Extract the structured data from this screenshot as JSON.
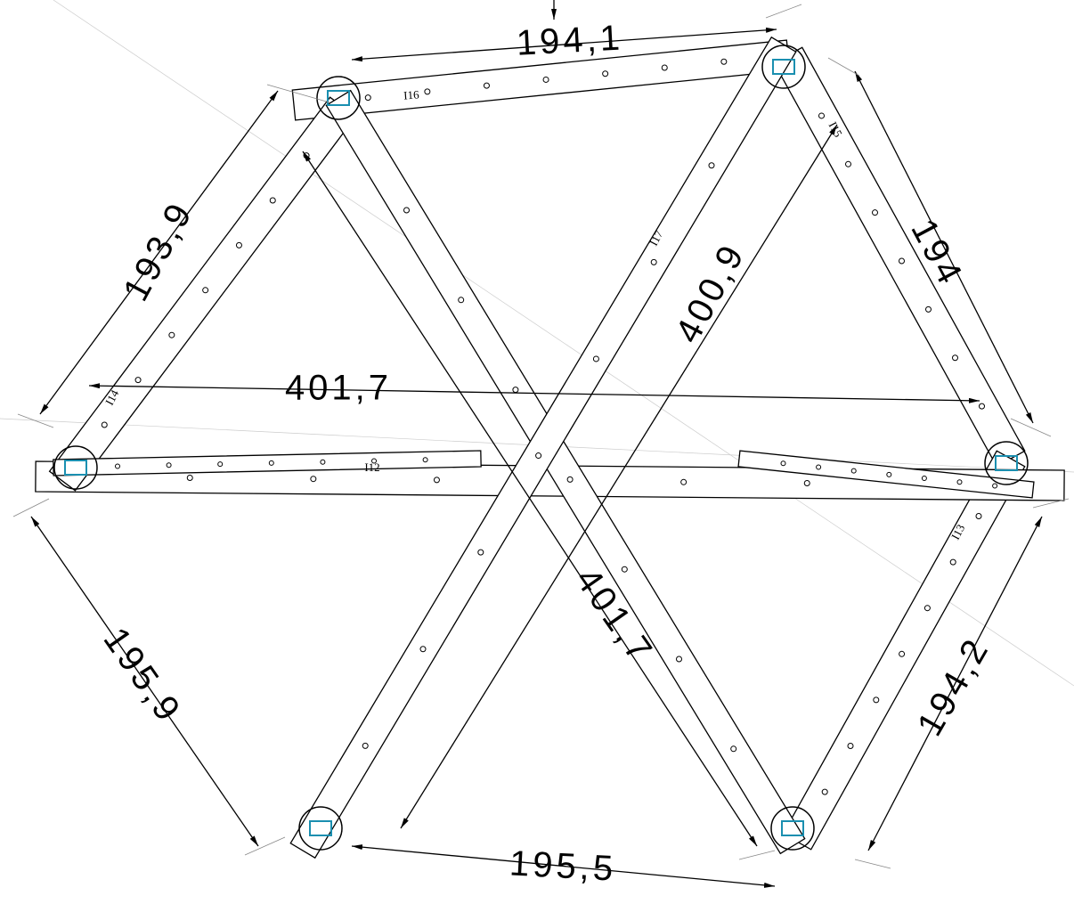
{
  "dimensions": {
    "top": "194,1",
    "upper_right": "194",
    "horizontal": "401,7",
    "diagonal_rising": "400,9",
    "upper_left": "193,9",
    "lower_left": "195,9",
    "diagonal_falling": "401,7",
    "lower_right": "194,2",
    "bottom": "195,5"
  },
  "members": {
    "top": "I16",
    "upper_right": "I15",
    "diagonal_rising": "I17",
    "left": "I14",
    "horizontal": "I12",
    "lower_right": "I13"
  }
}
